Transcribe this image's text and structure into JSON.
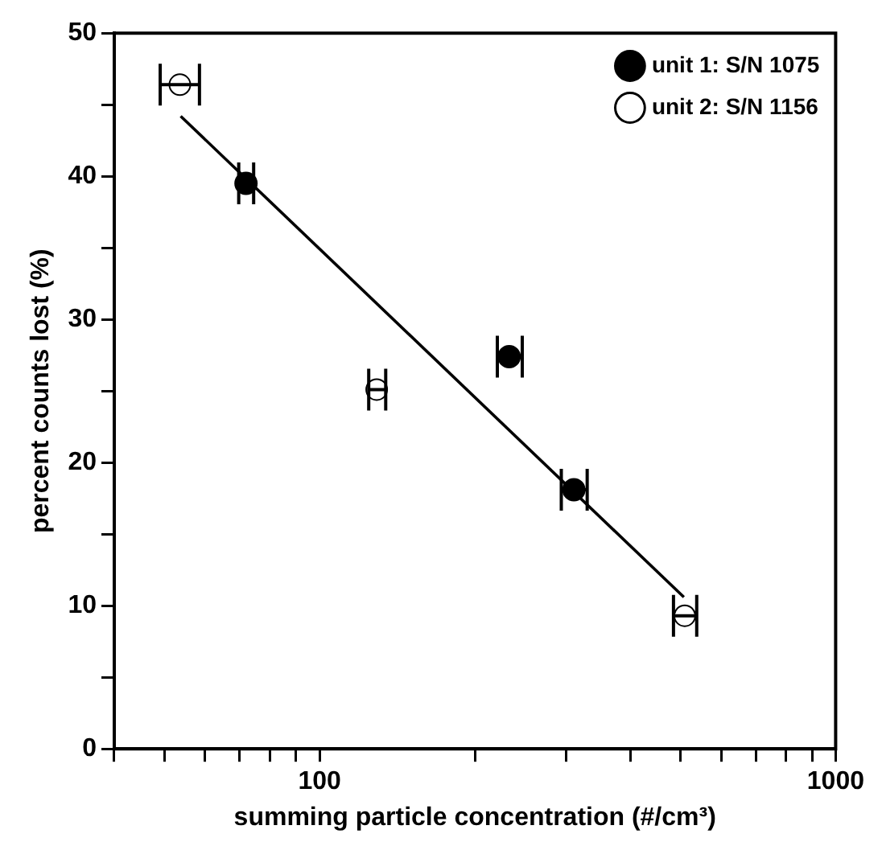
{
  "chart_data": {
    "type": "scatter",
    "xlabel": "summing particle concentration (#/cm³)",
    "ylabel": "percent counts lost (%)",
    "series": [
      {
        "name": "unit 1: S/N 1075",
        "color": "#000000",
        "x": [
          72,
          233,
          311
        ],
        "values": [
          39.5,
          27.4,
          18.1
        ],
        "xerrors": [
          [
            69.7,
            74.5
          ],
          [
            221,
            247
          ],
          [
            294,
            330
          ]
        ]
      },
      {
        "name": "unit 2: S/N 1156",
        "color": "#000000",
        "x": [
          53.6,
          129,
          510
        ],
        "values": [
          46.4,
          25.1,
          9.3
        ],
        "xerrors": [
          [
            49.1,
            58.5
          ],
          [
            124.5,
            134.3
          ],
          [
            485,
            538
          ]
        ]
      },
      {
        "type": "line",
        "color": "#000000",
        "marker": "none",
        "x": [
          53.8,
          508
        ],
        "values": [
          44.2,
          10.6
        ]
      }
    ],
    "log": "x",
    "xlim": [
      40,
      1000
    ],
    "xticks": [
      {
        "value": 40,
        "label": null
      },
      {
        "value": 50,
        "label": null
      },
      {
        "value": 60,
        "label": null
      },
      {
        "value": 70,
        "label": null
      },
      {
        "value": 80,
        "label": null
      },
      {
        "value": 90,
        "label": null
      },
      100,
      {
        "value": 200,
        "label": null
      },
      {
        "value": 300,
        "label": null
      },
      {
        "value": 400,
        "label": null
      },
      {
        "value": 500,
        "label": null
      },
      {
        "value": 600,
        "label": null
      },
      {
        "value": 700,
        "label": null
      },
      {
        "value": 800,
        "label": null
      },
      {
        "value": 900,
        "label": null
      },
      1000
    ],
    "ylim": [
      0,
      50
    ],
    "yticks": [
      0,
      {
        "value": 5,
        "label": null
      },
      10,
      {
        "value": 15,
        "label": null
      },
      20,
      {
        "value": 25,
        "label": null
      },
      30,
      {
        "value": 35,
        "label": null
      },
      40,
      {
        "value": 45,
        "label": null
      },
      50
    ],
    "grid": false,
    "legend": "top right",
    "marker": "circle"
  }
}
